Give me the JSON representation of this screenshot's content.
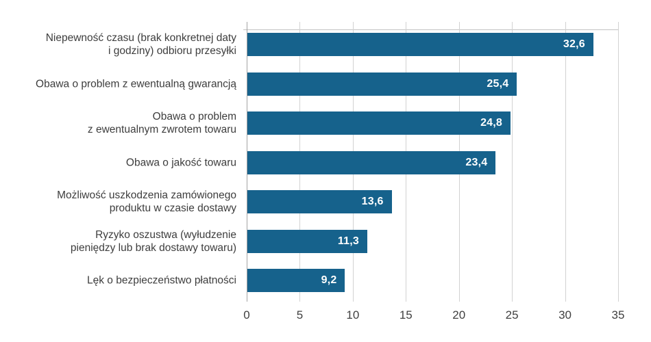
{
  "colors": {
    "bar_fill": "#16628C",
    "value_label": "#ffffff",
    "category_label": "#3d3d3d",
    "tick_label": "#404040",
    "gridline": "#d2d2d2",
    "zero_line": "#a3a3a3",
    "plot_border": "#c2c2c2",
    "background": "#ffffff"
  },
  "chart_data": {
    "type": "bar",
    "orientation": "horizontal",
    "title": "",
    "xlabel": "",
    "ylabel": "",
    "xlim": [
      0,
      35
    ],
    "x_ticks": [
      0,
      5,
      10,
      15,
      20,
      25,
      30,
      35
    ],
    "x_tick_labels": [
      "0",
      "5",
      "10",
      "15",
      "20",
      "25",
      "30",
      "35"
    ],
    "grid": "vertical",
    "legend": "none",
    "value_label_position": "inside-end",
    "decimal_separator": ",",
    "categories": [
      "Niepewność czasu (brak konkretnej daty i godziny) odbioru przesyłki",
      "Obawa o problem z ewentualną gwarancją",
      "Obawa o problem z ewentualnym zwrotem towaru",
      "Obawa o jakość towaru",
      "Możliwość uszkodzenia zamówionego produktu w czasie dostawy",
      "Ryzyko oszustwa (wyłudzenie pieniędzy lub brak dostawy towaru)",
      "Lęk o bezpieczeństwo płatności"
    ],
    "category_lines": [
      [
        "Niepewność czasu (brak konkretnej daty",
        "i godziny) odbioru przesyłki"
      ],
      [
        "Obawa o problem z ewentualną gwarancją"
      ],
      [
        "Obawa o problem",
        "z ewentualnym zwrotem towaru"
      ],
      [
        "Obawa o jakość towaru"
      ],
      [
        "Możliwość uszkodzenia zamówionego",
        "produktu w czasie dostawy"
      ],
      [
        "Ryzyko oszustwa (wyłudzenie",
        "pieniędzy lub brak dostawy towaru)"
      ],
      [
        "Lęk o bezpieczeństwo płatności"
      ]
    ],
    "values": [
      32.6,
      25.4,
      24.8,
      23.4,
      13.6,
      11.3,
      9.2
    ],
    "value_labels": [
      "32,6",
      "25,4",
      "24,8",
      "23,4",
      "13,6",
      "11,3",
      "9,2"
    ]
  }
}
